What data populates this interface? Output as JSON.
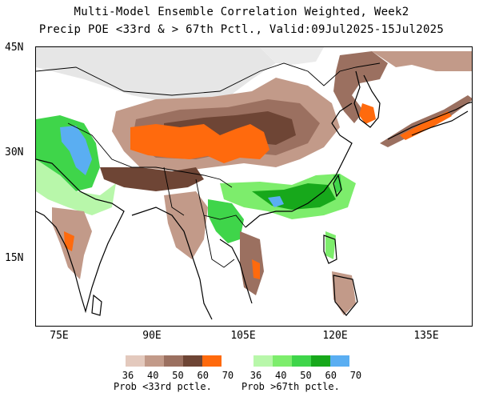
{
  "title_line1": "Multi-Model Ensemble Correlation Weighted, Week2",
  "title_line2": "Precip POE <33rd & > 67th Pctl., Valid:09Jul2025-15Jul2025",
  "axes": {
    "lat_labels": [
      "45N",
      "30N",
      "15N"
    ],
    "lon_labels": [
      "75E",
      "90E",
      "105E",
      "120E",
      "135E"
    ]
  },
  "legend": {
    "below": {
      "title": "Prob <33rd pctle.",
      "ticks": [
        "36",
        "40",
        "50",
        "60",
        "70"
      ],
      "colors": [
        "#e3c9bd",
        "#c29a89",
        "#9b7060",
        "#6e4535",
        "#ff6a0d"
      ]
    },
    "above": {
      "title": "Prob >67th pctle.",
      "ticks": [
        "36",
        "40",
        "50",
        "60",
        "70"
      ],
      "colors": [
        "#b8f7aa",
        "#7ded6c",
        "#3fd54a",
        "#17a81b",
        "#5aaef2"
      ]
    }
  },
  "colors": {
    "no_data": "#e6e6e6",
    "coastline": "#000000"
  }
}
